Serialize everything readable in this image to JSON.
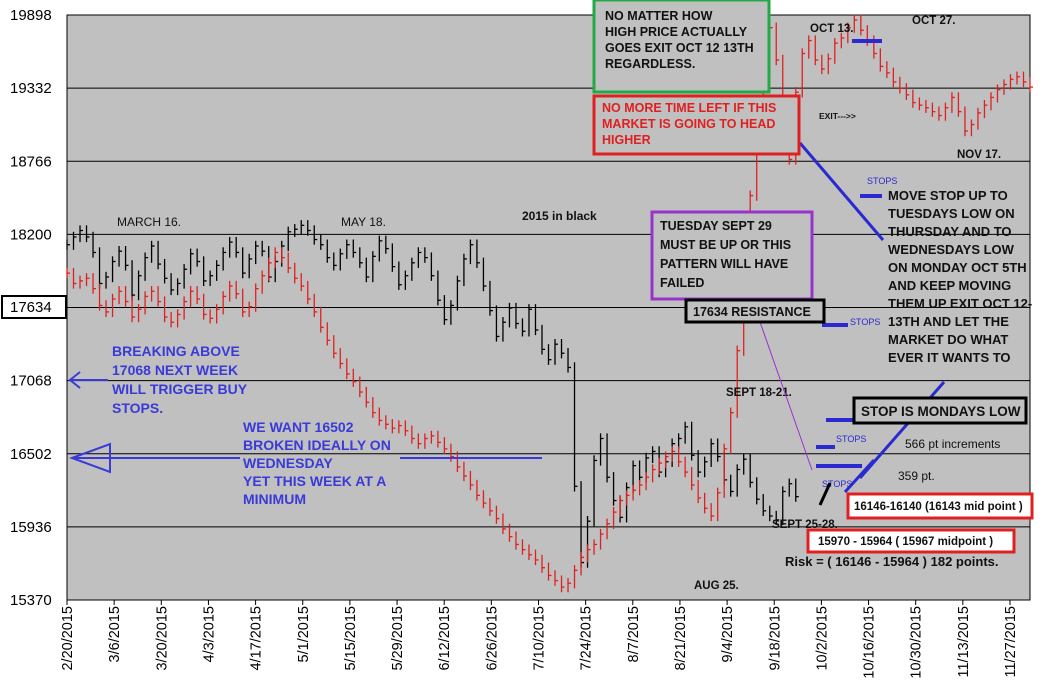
{
  "chart_data": {
    "type": "line",
    "title": "",
    "xlabel": "",
    "ylabel": "",
    "ylim": [
      15370,
      19898
    ],
    "yticks": [
      "19898",
      "19332",
      "18766",
      "18200",
      "17634",
      "17068",
      "16502",
      "15936",
      "15370"
    ],
    "xticks": [
      "2/20/2015",
      "3/6/2015",
      "3/20/2015",
      "4/3/2015",
      "4/17/2015",
      "5/1/2015",
      "5/15/2015",
      "5/29/2015",
      "6/12/2015",
      "6/26/2015",
      "7/10/2015",
      "7/24/2015",
      "8/7/2015",
      "8/21/2015",
      "9/4/2015",
      "9/18/2015",
      "10/2/2015",
      "10/16/2015",
      "10/30/2015",
      "11/13/2015",
      "11/27/2015"
    ],
    "grid": "horizontal",
    "series": [
      {
        "name": "2015 in black",
        "color": "#000000",
        "x": [
          0,
          2,
          4,
          6,
          8,
          10,
          12,
          14,
          16,
          18,
          20,
          22,
          24,
          26,
          28,
          30,
          32,
          34,
          36,
          38,
          40,
          42,
          44,
          46,
          48,
          50,
          52,
          54,
          56,
          58,
          60,
          62,
          64,
          66,
          68,
          70,
          72,
          74,
          76,
          78,
          80,
          82,
          84,
          86,
          88,
          90,
          92,
          94,
          96,
          98,
          100,
          102,
          104,
          106,
          108,
          110,
          112,
          114,
          116,
          118,
          120,
          122,
          124,
          126,
          128,
          130,
          132,
          134,
          136,
          138,
          140,
          142,
          144,
          146,
          148,
          150,
          152,
          154,
          156,
          158,
          160,
          162,
          164,
          166,
          168,
          170,
          172,
          174,
          176,
          178,
          180,
          182,
          184,
          186,
          188,
          190,
          192,
          194,
          196,
          198,
          200,
          202,
          204,
          206,
          208,
          210,
          212,
          214,
          216,
          218,
          220,
          222,
          224
        ],
        "values": [
          18120,
          18180,
          18230,
          18180,
          18060,
          17820,
          17870,
          17990,
          18070,
          17960,
          17730,
          17880,
          18020,
          18110,
          17970,
          17860,
          17770,
          17820,
          17930,
          18050,
          17990,
          17840,
          17880,
          17960,
          18060,
          18140,
          18060,
          17900,
          18010,
          18110,
          18070,
          17870,
          17990,
          18110,
          18220,
          18240,
          18270,
          18230,
          18160,
          18120,
          18020,
          17960,
          18050,
          18120,
          18060,
          17980,
          17870,
          18030,
          18150,
          18090,
          17950,
          17810,
          17880,
          17980,
          18060,
          18020,
          17880,
          17690,
          17540,
          17650,
          17840,
          18010,
          18120,
          17980,
          17800,
          17610,
          17410,
          17520,
          17630,
          17510,
          17450,
          17620,
          17460,
          17310,
          17230,
          17350,
          17280,
          17170,
          16250,
          15660,
          15980,
          16450,
          16620,
          16320,
          16140,
          16010,
          16240,
          16410,
          16320,
          16470,
          16520,
          16360,
          16440,
          16580,
          16620,
          16710,
          16490,
          16360,
          16440,
          16580,
          16480,
          16300,
          16210,
          16380,
          16460,
          16280,
          16150,
          16060,
          16020,
          15990,
          16210,
          16270,
          16170
        ]
      },
      {
        "name": "",
        "color": "#e02020",
        "x": [
          0,
          2,
          4,
          6,
          8,
          10,
          12,
          14,
          16,
          18,
          20,
          22,
          24,
          26,
          28,
          30,
          32,
          34,
          36,
          38,
          40,
          42,
          44,
          46,
          48,
          50,
          52,
          54,
          56,
          58,
          60,
          62,
          64,
          66,
          68,
          70,
          72,
          74,
          76,
          78,
          80,
          82,
          84,
          86,
          88,
          90,
          92,
          94,
          96,
          98,
          100,
          102,
          104,
          106,
          108,
          110,
          112,
          114,
          116,
          118,
          120,
          122,
          124,
          126,
          128,
          130,
          132,
          134,
          136,
          138,
          140,
          142,
          144,
          146,
          148,
          150,
          152,
          154,
          156,
          158,
          160,
          162,
          164,
          166,
          168,
          170,
          172,
          174,
          176,
          178,
          180,
          182,
          184,
          186,
          188,
          190,
          192,
          194,
          196,
          198,
          200,
          202,
          204,
          206,
          208,
          210,
          212,
          214,
          216,
          218,
          220,
          222,
          224,
          226,
          228,
          230,
          232,
          234,
          236,
          238,
          240,
          242,
          244,
          246,
          248,
          250,
          252,
          254,
          256,
          258,
          260,
          262,
          264,
          266,
          268,
          270,
          272,
          274,
          276,
          278,
          280,
          282,
          284,
          286,
          288,
          290,
          292,
          294,
          296
        ],
        "values": [
          17900,
          17820,
          17840,
          17860,
          17780,
          17650,
          17600,
          17700,
          17760,
          17680,
          17560,
          17620,
          17720,
          17760,
          17680,
          17560,
          17520,
          17580,
          17680,
          17760,
          17700,
          17580,
          17550,
          17620,
          17720,
          17800,
          17740,
          17600,
          17640,
          17780,
          17880,
          17980,
          18060,
          18020,
          17940,
          17860,
          17800,
          17700,
          17600,
          17480,
          17380,
          17280,
          17200,
          17120,
          17060,
          16980,
          16900,
          16820,
          16760,
          16730,
          16700,
          16720,
          16680,
          16620,
          16580,
          16620,
          16640,
          16590,
          16540,
          16480,
          16400,
          16330,
          16260,
          16180,
          16120,
          16060,
          16000,
          15920,
          15860,
          15800,
          15760,
          15720,
          15680,
          15620,
          15560,
          15520,
          15470,
          15500,
          15600,
          15700,
          15760,
          15800,
          15880,
          15960,
          16050,
          16140,
          16180,
          16220,
          16260,
          16320,
          16380,
          16430,
          16480,
          16520,
          16440,
          16360,
          16260,
          16160,
          16080,
          16020,
          16200,
          16540,
          16820,
          17300,
          17900,
          18500,
          18960,
          19500,
          19800,
          19550,
          19100,
          18780,
          19300,
          19600,
          19700,
          19550,
          19480,
          19560,
          19680,
          19720,
          19800,
          19860,
          19780,
          19700,
          19600,
          19500,
          19450,
          19380,
          19330,
          19280,
          19220,
          19200,
          19180,
          19150,
          19120,
          19180,
          19260,
          19150,
          19000,
          19050,
          19140,
          19200,
          19260,
          19320,
          19360,
          19400,
          19420,
          19380,
          19340
        ]
      }
    ],
    "annotations": {
      "march16": "MARCH 16.",
      "may18": "MAY 18.",
      "legend_2015": "2015 in black",
      "sept1821": "SEPT 18-21.",
      "sept2528": "SEPT 25-28.",
      "aug25": "AUG 25.",
      "oct13": "OCT 13.",
      "oct27": "OCT 27.",
      "nov17": "NOV 17.",
      "exit_arrow": "EXIT--->>",
      "stops": "STOPS",
      "increments_566": "566 pt increments",
      "pt_359": "359 pt.",
      "risk": "Risk = ( 16146 - 15964 ) 182 points.",
      "breaking_above": [
        "BREAKING ABOVE",
        "17068 NEXT WEEK",
        "WILL TRIGGER BUY",
        "STOPS."
      ],
      "we_want": [
        "WE WANT 16502",
        "BROKEN IDEALLY ON",
        "WEDNESDAY",
        "YET THIS WEEK AT A",
        "MINIMUM"
      ],
      "move_stop": [
        "MOVE STOP UP TO",
        "TUESDAYS LOW ON",
        "THURSDAY AND TO",
        "WEDNESDAYS LOW",
        "ON MONDAY OCT 5TH",
        "AND KEEP MOVING",
        "THEM UP EXIT OCT 12-",
        "13TH AND LET THE",
        "MARKET DO WHAT",
        "EVER IT WANTS TO"
      ]
    },
    "boxes": {
      "green_note": [
        "NO MATTER HOW",
        "HIGH PRICE ACTUALLY",
        "GOES EXIT OCT 12 13TH",
        "REGARDLESS."
      ],
      "red_note": [
        "NO MORE TIME LEFT IF THIS",
        "MARKET IS GOING TO HEAD",
        "HIGHER"
      ],
      "purple_note": [
        "TUESDAY SEPT 29",
        "MUST BE UP OR THIS",
        "PATTERN WILL HAVE",
        "FAILED"
      ],
      "resistance": "17634 RESISTANCE",
      "stop_monday": "STOP IS MONDAYS LOW",
      "range_16146": "16146-16140 (16143 mid point )",
      "range_15970": "15970 - 15964 ( 15967 midpoint )",
      "ytick_17634_box": "17634"
    },
    "colors": {
      "plot_bg": "#c0c0c0",
      "black_series": "#000000",
      "red_series": "#e02020",
      "blue_text": "#3a3ad8",
      "green_box": "#22aa44",
      "red_box": "#e02020",
      "purple_box": "#9933cc"
    }
  }
}
